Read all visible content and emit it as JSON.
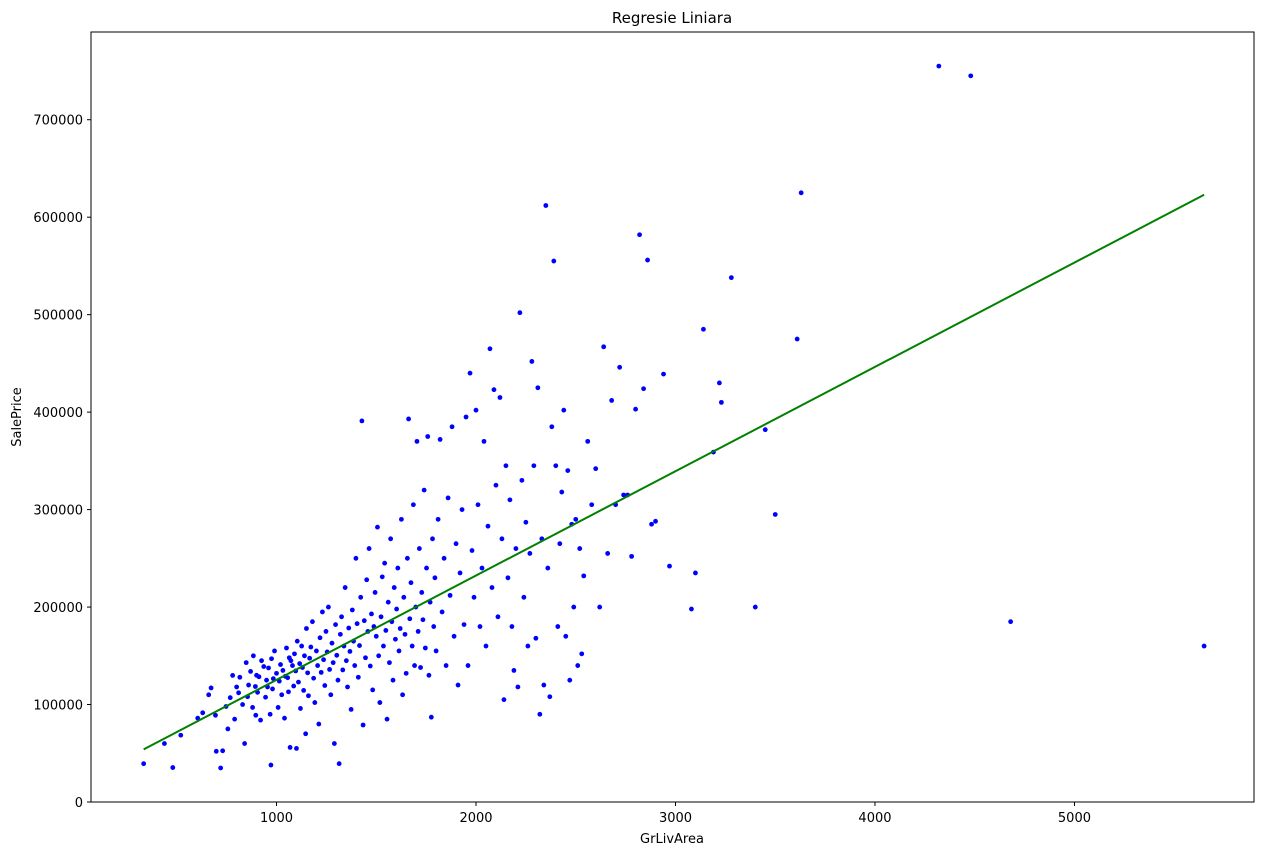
{
  "chart_data": {
    "type": "scatter",
    "title": "Regresie Liniara",
    "xlabel": "GrLivArea",
    "ylabel": "SalePrice",
    "xlim": [
      70,
      5900
    ],
    "ylim": [
      0,
      790000
    ],
    "x_ticks": [
      1000,
      2000,
      3000,
      4000,
      5000
    ],
    "y_ticks": [
      0,
      100000,
      200000,
      300000,
      400000,
      500000,
      600000,
      700000
    ],
    "grid": false,
    "legend": "none",
    "point_color": "#0000ff",
    "line_color": "#008000",
    "series": [
      {
        "kind": "points",
        "points": [
          [
            334,
            39300
          ],
          [
            438,
            60000
          ],
          [
            480,
            35311
          ],
          [
            520,
            68500
          ],
          [
            605,
            86000
          ],
          [
            630,
            91500
          ],
          [
            660,
            110000
          ],
          [
            672,
            117000
          ],
          [
            694,
            89000
          ],
          [
            698,
            52000
          ],
          [
            720,
            34900
          ],
          [
            730,
            52500
          ],
          [
            747,
            98000
          ],
          [
            756,
            75000
          ],
          [
            768,
            107000
          ],
          [
            780,
            129900
          ],
          [
            790,
            85000
          ],
          [
            800,
            118000
          ],
          [
            810,
            112000
          ],
          [
            816,
            128000
          ],
          [
            830,
            100000
          ],
          [
            840,
            60000
          ],
          [
            848,
            143000
          ],
          [
            855,
            108000
          ],
          [
            860,
            120000
          ],
          [
            870,
            134000
          ],
          [
            880,
            97000
          ],
          [
            884,
            150000
          ],
          [
            894,
            118500
          ],
          [
            896,
            89000
          ],
          [
            900,
            130000
          ],
          [
            905,
            112500
          ],
          [
            912,
            128500
          ],
          [
            920,
            84000
          ],
          [
            925,
            145000
          ],
          [
            936,
            139000
          ],
          [
            945,
            107500
          ],
          [
            950,
            125000
          ],
          [
            955,
            118000
          ],
          [
            960,
            137500
          ],
          [
            968,
            90000
          ],
          [
            972,
            37900
          ],
          [
            975,
            147000
          ],
          [
            980,
            116000
          ],
          [
            984,
            126500
          ],
          [
            990,
            155000
          ],
          [
            1000,
            132000
          ],
          [
            1008,
            97000
          ],
          [
            1014,
            124000
          ],
          [
            1020,
            141000
          ],
          [
            1026,
            110000
          ],
          [
            1032,
            135000
          ],
          [
            1040,
            86000
          ],
          [
            1044,
            129000
          ],
          [
            1050,
            158000
          ],
          [
            1056,
            127500
          ],
          [
            1060,
            113000
          ],
          [
            1064,
            148000
          ],
          [
            1068,
            56000
          ],
          [
            1072,
            145000
          ],
          [
            1080,
            140000
          ],
          [
            1086,
            119000
          ],
          [
            1090,
            152000
          ],
          [
            1096,
            134500
          ],
          [
            1100,
            55000
          ],
          [
            1104,
            165000
          ],
          [
            1110,
            123000
          ],
          [
            1116,
            142000
          ],
          [
            1120,
            96000
          ],
          [
            1126,
            160000
          ],
          [
            1130,
            138000
          ],
          [
            1136,
            114500
          ],
          [
            1140,
            150000
          ],
          [
            1146,
            70000
          ],
          [
            1150,
            178000
          ],
          [
            1156,
            132500
          ],
          [
            1160,
            109000
          ],
          [
            1166,
            147500
          ],
          [
            1172,
            159000
          ],
          [
            1180,
            185000
          ],
          [
            1186,
            127000
          ],
          [
            1192,
            102000
          ],
          [
            1200,
            155000
          ],
          [
            1206,
            140000
          ],
          [
            1212,
            80000
          ],
          [
            1218,
            168500
          ],
          [
            1224,
            133000
          ],
          [
            1230,
            195000
          ],
          [
            1236,
            146000
          ],
          [
            1242,
            119500
          ],
          [
            1248,
            175000
          ],
          [
            1254,
            154000
          ],
          [
            1260,
            200000
          ],
          [
            1266,
            136000
          ],
          [
            1272,
            110000
          ],
          [
            1278,
            163000
          ],
          [
            1284,
            143000
          ],
          [
            1290,
            60000
          ],
          [
            1296,
            182000
          ],
          [
            1302,
            150500
          ],
          [
            1308,
            125000
          ],
          [
            1314,
            39300
          ],
          [
            1320,
            172000
          ],
          [
            1326,
            190000
          ],
          [
            1332,
            135500
          ],
          [
            1338,
            160000
          ],
          [
            1344,
            220000
          ],
          [
            1350,
            145000
          ],
          [
            1356,
            118000
          ],
          [
            1362,
            178500
          ],
          [
            1368,
            154500
          ],
          [
            1374,
            95000
          ],
          [
            1380,
            197000
          ],
          [
            1386,
            165000
          ],
          [
            1392,
            140000
          ],
          [
            1398,
            250000
          ],
          [
            1404,
            183000
          ],
          [
            1410,
            128000
          ],
          [
            1416,
            160500
          ],
          [
            1422,
            210000
          ],
          [
            1428,
            391000
          ],
          [
            1434,
            79000
          ],
          [
            1440,
            186000
          ],
          [
            1446,
            148000
          ],
          [
            1452,
            228000
          ],
          [
            1458,
            175000
          ],
          [
            1464,
            260000
          ],
          [
            1470,
            139500
          ],
          [
            1476,
            193000
          ],
          [
            1482,
            115000
          ],
          [
            1488,
            180000
          ],
          [
            1494,
            215000
          ],
          [
            1500,
            170000
          ],
          [
            1506,
            282000
          ],
          [
            1512,
            150000
          ],
          [
            1518,
            102000
          ],
          [
            1524,
            190000
          ],
          [
            1530,
            231000
          ],
          [
            1536,
            160000
          ],
          [
            1542,
            245000
          ],
          [
            1548,
            176000
          ],
          [
            1554,
            85000
          ],
          [
            1560,
            205000
          ],
          [
            1566,
            143000
          ],
          [
            1572,
            270000
          ],
          [
            1578,
            185000
          ],
          [
            1584,
            125000
          ],
          [
            1590,
            220000
          ],
          [
            1596,
            167000
          ],
          [
            1602,
            198000
          ],
          [
            1608,
            240000
          ],
          [
            1614,
            155000
          ],
          [
            1620,
            178000
          ],
          [
            1626,
            290000
          ],
          [
            1632,
            110000
          ],
          [
            1638,
            210000
          ],
          [
            1644,
            172000
          ],
          [
            1650,
            132000
          ],
          [
            1656,
            250000
          ],
          [
            1662,
            393000
          ],
          [
            1668,
            188000
          ],
          [
            1674,
            225000
          ],
          [
            1680,
            160000
          ],
          [
            1686,
            305000
          ],
          [
            1692,
            140000
          ],
          [
            1698,
            200000
          ],
          [
            1704,
            370000
          ],
          [
            1710,
            175000
          ],
          [
            1716,
            260000
          ],
          [
            1722,
            138000
          ],
          [
            1728,
            215000
          ],
          [
            1734,
            187000
          ],
          [
            1740,
            320000
          ],
          [
            1746,
            158000
          ],
          [
            1752,
            240000
          ],
          [
            1758,
            375000
          ],
          [
            1764,
            130000
          ],
          [
            1770,
            205000
          ],
          [
            1776,
            87000
          ],
          [
            1782,
            270000
          ],
          [
            1788,
            180000
          ],
          [
            1794,
            230000
          ],
          [
            1800,
            155000
          ],
          [
            1810,
            290000
          ],
          [
            1820,
            372000
          ],
          [
            1830,
            195000
          ],
          [
            1840,
            250000
          ],
          [
            1850,
            140000
          ],
          [
            1860,
            312000
          ],
          [
            1870,
            212000
          ],
          [
            1880,
            385000
          ],
          [
            1890,
            170000
          ],
          [
            1900,
            265000
          ],
          [
            1910,
            120000
          ],
          [
            1920,
            235000
          ],
          [
            1930,
            300000
          ],
          [
            1940,
            182000
          ],
          [
            1950,
            395000
          ],
          [
            1960,
            140000
          ],
          [
            1970,
            440000
          ],
          [
            1980,
            258000
          ],
          [
            1990,
            210000
          ],
          [
            2000,
            402000
          ],
          [
            2010,
            305000
          ],
          [
            2020,
            180000
          ],
          [
            2030,
            240000
          ],
          [
            2040,
            370000
          ],
          [
            2050,
            160000
          ],
          [
            2060,
            283000
          ],
          [
            2070,
            465000
          ],
          [
            2080,
            220000
          ],
          [
            2090,
            423000
          ],
          [
            2100,
            325000
          ],
          [
            2110,
            190000
          ],
          [
            2120,
            415000
          ],
          [
            2130,
            270000
          ],
          [
            2140,
            105000
          ],
          [
            2150,
            345000
          ],
          [
            2160,
            230000
          ],
          [
            2170,
            310000
          ],
          [
            2180,
            180000
          ],
          [
            2190,
            135000
          ],
          [
            2200,
            260000
          ],
          [
            2210,
            118000
          ],
          [
            2220,
            502000
          ],
          [
            2230,
            330000
          ],
          [
            2240,
            210000
          ],
          [
            2250,
            287000
          ],
          [
            2260,
            160000
          ],
          [
            2270,
            255000
          ],
          [
            2280,
            452000
          ],
          [
            2290,
            345000
          ],
          [
            2300,
            168000
          ],
          [
            2310,
            425000
          ],
          [
            2320,
            90000
          ],
          [
            2330,
            270000
          ],
          [
            2340,
            120000
          ],
          [
            2350,
            612000
          ],
          [
            2360,
            240000
          ],
          [
            2370,
            108000
          ],
          [
            2380,
            385000
          ],
          [
            2390,
            555000
          ],
          [
            2400,
            345000
          ],
          [
            2410,
            180000
          ],
          [
            2420,
            265000
          ],
          [
            2430,
            318000
          ],
          [
            2440,
            402000
          ],
          [
            2450,
            170000
          ],
          [
            2460,
            340000
          ],
          [
            2470,
            125000
          ],
          [
            2480,
            285000
          ],
          [
            2490,
            200000
          ],
          [
            2500,
            290000
          ],
          [
            2510,
            140000
          ],
          [
            2520,
            260000
          ],
          [
            2530,
            152000
          ],
          [
            2540,
            232000
          ],
          [
            2560,
            370000
          ],
          [
            2580,
            305000
          ],
          [
            2600,
            342000
          ],
          [
            2620,
            200000
          ],
          [
            2640,
            467000
          ],
          [
            2660,
            255000
          ],
          [
            2680,
            412000
          ],
          [
            2700,
            305000
          ],
          [
            2720,
            446000
          ],
          [
            2740,
            315000
          ],
          [
            2760,
            315000
          ],
          [
            2780,
            252000
          ],
          [
            2800,
            403000
          ],
          [
            2820,
            582000
          ],
          [
            2840,
            424000
          ],
          [
            2860,
            556000
          ],
          [
            2880,
            285000
          ],
          [
            2900,
            288000
          ],
          [
            2940,
            439000
          ],
          [
            2970,
            242000
          ],
          [
            3080,
            198000
          ],
          [
            3100,
            235000
          ],
          [
            3140,
            485000
          ],
          [
            3190,
            359000
          ],
          [
            3220,
            430000
          ],
          [
            3230,
            410000
          ],
          [
            3280,
            538000
          ],
          [
            3400,
            200000
          ],
          [
            3450,
            382000
          ],
          [
            3500,
            295000
          ],
          [
            3610,
            475000
          ],
          [
            3630,
            625000
          ],
          [
            4320,
            755000
          ],
          [
            4480,
            745000
          ],
          [
            4680,
            185000
          ],
          [
            5650,
            160000
          ]
        ]
      },
      {
        "kind": "line",
        "points": [
          [
            334,
            54000
          ],
          [
            5650,
            623000
          ]
        ]
      }
    ]
  }
}
